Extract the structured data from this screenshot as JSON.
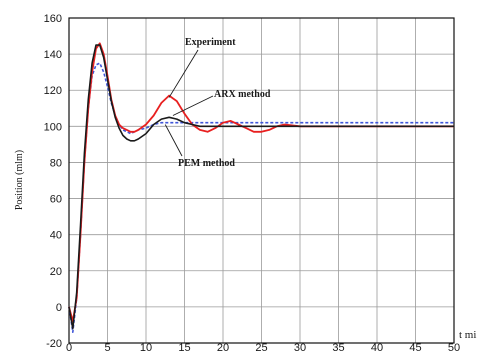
{
  "chart_data": {
    "type": "line",
    "title": "",
    "xlabel": "t mi",
    "ylabel": "Position (mlm)",
    "xlim": [
      0,
      50
    ],
    "ylim": [
      -20,
      160
    ],
    "grid": true,
    "x_ticks": [
      0,
      5,
      10,
      15,
      20,
      25,
      30,
      35,
      40,
      45,
      50
    ],
    "y_ticks": [
      -20,
      0,
      20,
      40,
      60,
      80,
      100,
      120,
      140,
      160
    ],
    "annotations": [
      {
        "text": "Experiment",
        "series": "Experiment",
        "point": [
          13,
          116
        ]
      },
      {
        "text": "ARX method",
        "series": "ARX method",
        "point": [
          13.5,
          106
        ]
      },
      {
        "text": "PEM method",
        "series": "PEM method",
        "point": [
          12.5,
          101
        ]
      }
    ],
    "series": [
      {
        "name": "Experiment",
        "color": "#e82020",
        "style": "solid",
        "x": [
          0,
          0.5,
          1,
          1.5,
          2,
          2.5,
          3,
          3.5,
          4,
          4.5,
          5,
          5.5,
          6,
          6.5,
          7,
          7.5,
          8,
          8.5,
          9,
          10,
          11,
          12,
          13,
          14,
          15,
          16,
          17,
          18,
          19,
          20,
          21,
          22,
          23,
          24,
          25,
          26,
          27,
          28,
          30,
          32,
          35,
          40,
          45,
          50
        ],
        "y": [
          0,
          -8,
          5,
          40,
          80,
          110,
          130,
          143,
          146,
          140,
          128,
          115,
          106,
          101,
          99,
          98,
          97,
          97,
          98,
          101,
          106,
          113,
          117,
          114,
          107,
          101,
          98,
          97,
          99,
          102,
          103,
          101,
          99,
          97,
          97,
          98,
          100,
          101,
          100,
          100,
          100,
          100,
          100,
          100
        ]
      },
      {
        "name": "ARX method",
        "color": "#1a1a1a",
        "style": "solid",
        "x": [
          0,
          0.5,
          1,
          1.5,
          2,
          2.5,
          3,
          3.5,
          4,
          4.5,
          5,
          5.5,
          6,
          6.5,
          7,
          7.5,
          8,
          8.5,
          9,
          10,
          11,
          12,
          13,
          14,
          15,
          16,
          17,
          18,
          20,
          22,
          25,
          30,
          35,
          40,
          45,
          50
        ],
        "y": [
          0,
          -12,
          8,
          45,
          85,
          115,
          135,
          145,
          145,
          138,
          126,
          114,
          105,
          99,
          95,
          93,
          92,
          92,
          93,
          96,
          101,
          104,
          105,
          104,
          102,
          101,
          100,
          100,
          100,
          100,
          100,
          100,
          100,
          100,
          100,
          100
        ]
      },
      {
        "name": "PEM method",
        "color": "#3f55d8",
        "style": "dashed",
        "x": [
          0,
          0.5,
          1,
          1.5,
          2,
          2.5,
          3,
          3.5,
          4,
          4.5,
          5,
          5.5,
          6,
          6.5,
          7,
          7.5,
          8,
          8.5,
          9,
          10,
          11,
          12,
          13,
          14,
          15,
          16,
          18,
          20,
          25,
          30,
          35,
          40,
          45,
          50
        ],
        "y": [
          0,
          -14,
          5,
          40,
          80,
          110,
          128,
          134,
          135,
          130,
          122,
          113,
          106,
          101,
          98,
          97,
          96,
          97,
          98,
          99,
          101,
          102,
          102,
          102,
          102,
          102,
          102,
          102,
          102,
          102,
          102,
          102,
          102,
          102
        ]
      }
    ]
  }
}
